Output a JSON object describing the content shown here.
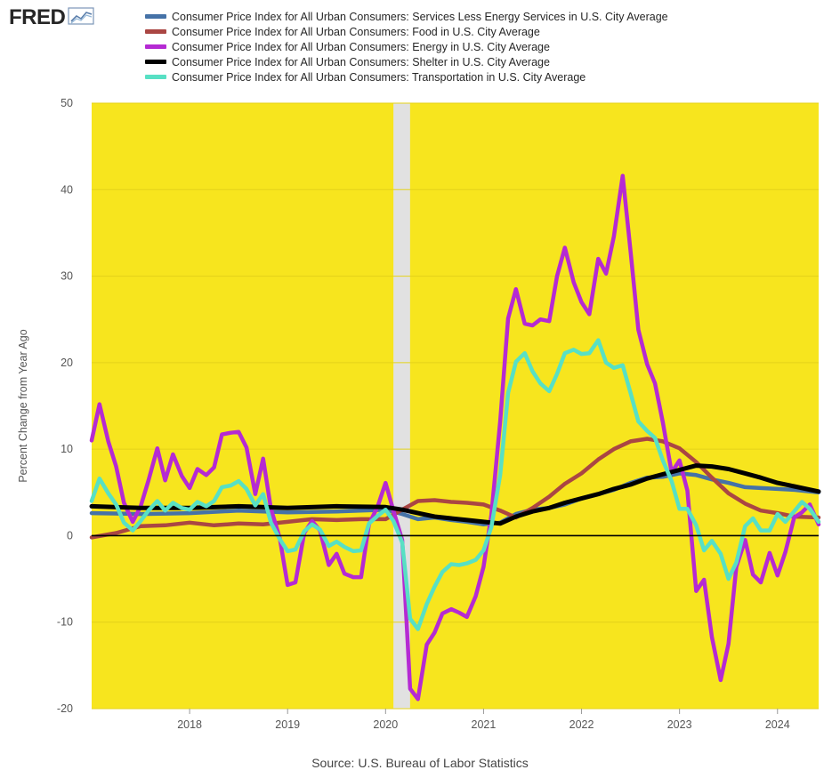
{
  "logo": {
    "text": "FRED",
    "icon": "trend-line-icon"
  },
  "source_label": "Source: U.S. Bureau of Labor Statistics",
  "colors": {
    "plot_background": "#f7e51e",
    "recession_shade": "#e1e1e1",
    "zero_line": "#000000"
  },
  "chart_data": {
    "type": "line",
    "ylabel": "Percent Change from Year Ago",
    "ylim": [
      -20,
      50
    ],
    "yticks": [
      -20,
      -10,
      0,
      10,
      20,
      30,
      40,
      50
    ],
    "xlim": [
      2017.0,
      2024.42
    ],
    "xticks": [
      2018,
      2019,
      2020,
      2021,
      2022,
      2023,
      2024
    ],
    "grid": "horizontal",
    "legend_position": "top",
    "recession_shading": [
      [
        2020.08,
        2020.25
      ]
    ],
    "series": [
      {
        "name": "Consumer Price Index for All Urban Consumers: Services Less Energy Services in U.S. City Average",
        "color": "#4572a7",
        "x": [
          2017.0,
          2017.5,
          2018.0,
          2018.5,
          2019.0,
          2019.5,
          2020.0,
          2020.17,
          2020.33,
          2020.5,
          2020.67,
          2020.83,
          2021.0,
          2021.17,
          2021.33,
          2021.5,
          2021.67,
          2021.83,
          2022.0,
          2022.17,
          2022.33,
          2022.5,
          2022.67,
          2022.83,
          2023.0,
          2023.17,
          2023.33,
          2023.5,
          2023.67,
          2023.83,
          2024.0,
          2024.17,
          2024.42
        ],
        "values": [
          2.6,
          2.5,
          2.6,
          2.9,
          2.7,
          2.8,
          3.0,
          2.5,
          1.9,
          2.1,
          1.8,
          1.6,
          1.3,
          1.5,
          2.5,
          3.0,
          3.2,
          3.6,
          4.3,
          4.8,
          5.3,
          6.1,
          6.7,
          6.8,
          7.2,
          7.0,
          6.5,
          6.1,
          5.6,
          5.5,
          5.4,
          5.3,
          5.0
        ]
      },
      {
        "name": "Consumer Price Index for All Urban Consumers: Food in U.S. City Average",
        "color": "#aa4643",
        "x": [
          2017.0,
          2017.25,
          2017.5,
          2017.75,
          2018.0,
          2018.25,
          2018.5,
          2018.75,
          2019.0,
          2019.25,
          2019.5,
          2019.75,
          2020.0,
          2020.17,
          2020.33,
          2020.5,
          2020.67,
          2020.83,
          2021.0,
          2021.17,
          2021.33,
          2021.5,
          2021.67,
          2021.83,
          2022.0,
          2022.17,
          2022.33,
          2022.5,
          2022.67,
          2022.83,
          2023.0,
          2023.17,
          2023.33,
          2023.5,
          2023.67,
          2023.83,
          2024.0,
          2024.17,
          2024.42
        ],
        "values": [
          -0.2,
          0.3,
          1.1,
          1.2,
          1.5,
          1.2,
          1.4,
          1.3,
          1.6,
          1.9,
          1.8,
          1.9,
          1.9,
          3.0,
          4.0,
          4.1,
          3.9,
          3.8,
          3.6,
          2.9,
          2.1,
          3.2,
          4.5,
          6.0,
          7.2,
          8.8,
          10.0,
          10.9,
          11.2,
          10.9,
          10.1,
          8.5,
          6.7,
          4.9,
          3.7,
          2.9,
          2.6,
          2.2,
          2.1
        ]
      },
      {
        "name": "Consumer Price Index for All Urban Consumers: Energy in U.S. City Average",
        "color": "#b52ad3",
        "x": [
          2017.0,
          2017.08,
          2017.17,
          2017.25,
          2017.33,
          2017.42,
          2017.5,
          2017.58,
          2017.67,
          2017.75,
          2017.83,
          2017.92,
          2018.0,
          2018.08,
          2018.17,
          2018.25,
          2018.33,
          2018.42,
          2018.5,
          2018.58,
          2018.67,
          2018.75,
          2018.83,
          2018.92,
          2019.0,
          2019.08,
          2019.17,
          2019.25,
          2019.33,
          2019.42,
          2019.5,
          2019.58,
          2019.67,
          2019.75,
          2019.83,
          2019.92,
          2020.0,
          2020.08,
          2020.17,
          2020.25,
          2020.33,
          2020.42,
          2020.5,
          2020.58,
          2020.67,
          2020.75,
          2020.83,
          2020.92,
          2021.0,
          2021.08,
          2021.17,
          2021.25,
          2021.33,
          2021.42,
          2021.5,
          2021.58,
          2021.67,
          2021.75,
          2021.83,
          2021.92,
          2022.0,
          2022.08,
          2022.17,
          2022.25,
          2022.33,
          2022.42,
          2022.5,
          2022.58,
          2022.67,
          2022.75,
          2022.83,
          2022.92,
          2023.0,
          2023.08,
          2023.17,
          2023.25,
          2023.33,
          2023.42,
          2023.5,
          2023.58,
          2023.67,
          2023.75,
          2023.83,
          2023.92,
          2024.0,
          2024.08,
          2024.17,
          2024.25,
          2024.33,
          2024.42
        ],
        "values": [
          11.0,
          15.2,
          10.9,
          8.0,
          3.8,
          1.6,
          3.4,
          6.4,
          10.1,
          6.4,
          9.4,
          6.9,
          5.5,
          7.7,
          7.0,
          7.9,
          11.7,
          11.9,
          12.0,
          10.2,
          4.8,
          8.9,
          3.1,
          -0.3,
          -5.7,
          -5.4,
          0.3,
          1.7,
          0.6,
          -3.4,
          -2.1,
          -4.4,
          -4.8,
          -4.8,
          1.3,
          3.4,
          6.1,
          2.9,
          -0.5,
          -17.7,
          -18.9,
          -12.6,
          -11.2,
          -9.0,
          -8.5,
          -8.9,
          -9.4,
          -7.0,
          -3.6,
          2.4,
          13.2,
          25.1,
          28.5,
          24.5,
          24.3,
          25.0,
          24.8,
          30.0,
          33.3,
          29.3,
          27.0,
          25.6,
          32.0,
          30.3,
          34.6,
          41.6,
          32.9,
          23.8,
          19.8,
          17.6,
          13.1,
          7.3,
          8.7,
          5.2,
          -6.4,
          -5.1,
          -11.7,
          -16.7,
          -12.5,
          -3.6,
          -0.5,
          -4.5,
          -5.4,
          -2.0,
          -4.6,
          -1.9,
          2.1,
          2.7,
          3.6,
          1.3
        ]
      },
      {
        "name": "Consumer Price Index for All Urban Consumers: Shelter in U.S. City Average",
        "color": "#000000",
        "x": [
          2017.0,
          2017.5,
          2018.0,
          2018.5,
          2019.0,
          2019.5,
          2020.0,
          2020.17,
          2020.33,
          2020.5,
          2020.67,
          2020.83,
          2021.0,
          2021.17,
          2021.33,
          2021.5,
          2021.67,
          2021.83,
          2022.0,
          2022.17,
          2022.33,
          2022.5,
          2022.67,
          2022.83,
          2023.0,
          2023.17,
          2023.33,
          2023.5,
          2023.67,
          2023.83,
          2024.0,
          2024.17,
          2024.42
        ],
        "values": [
          3.4,
          3.2,
          3.2,
          3.4,
          3.2,
          3.4,
          3.3,
          3.0,
          2.6,
          2.2,
          2.0,
          1.8,
          1.6,
          1.4,
          2.2,
          2.8,
          3.2,
          3.8,
          4.3,
          4.8,
          5.4,
          5.9,
          6.6,
          7.1,
          7.6,
          8.1,
          8.0,
          7.7,
          7.2,
          6.7,
          6.1,
          5.7,
          5.1
        ]
      },
      {
        "name": "Consumer Price Index for All Urban Consumers: Transportation in U.S. City Average",
        "color": "#58e0c4",
        "x": [
          2017.0,
          2017.08,
          2017.17,
          2017.25,
          2017.33,
          2017.42,
          2017.5,
          2017.58,
          2017.67,
          2017.75,
          2017.83,
          2017.92,
          2018.0,
          2018.08,
          2018.17,
          2018.25,
          2018.33,
          2018.42,
          2018.5,
          2018.58,
          2018.67,
          2018.75,
          2018.83,
          2018.92,
          2019.0,
          2019.08,
          2019.17,
          2019.25,
          2019.33,
          2019.42,
          2019.5,
          2019.58,
          2019.67,
          2019.75,
          2019.83,
          2019.92,
          2020.0,
          2020.08,
          2020.17,
          2020.25,
          2020.33,
          2020.42,
          2020.5,
          2020.58,
          2020.67,
          2020.75,
          2020.83,
          2020.92,
          2021.0,
          2021.08,
          2021.17,
          2021.25,
          2021.33,
          2021.42,
          2021.5,
          2021.58,
          2021.67,
          2021.75,
          2021.83,
          2021.92,
          2022.0,
          2022.08,
          2022.17,
          2022.25,
          2022.33,
          2022.42,
          2022.5,
          2022.58,
          2022.67,
          2022.75,
          2022.83,
          2022.92,
          2023.0,
          2023.08,
          2023.17,
          2023.25,
          2023.33,
          2023.42,
          2023.5,
          2023.58,
          2023.67,
          2023.75,
          2023.83,
          2023.92,
          2024.0,
          2024.08,
          2024.17,
          2024.25,
          2024.33,
          2024.42
        ],
        "values": [
          4.0,
          6.6,
          4.9,
          3.6,
          1.5,
          0.6,
          1.7,
          2.9,
          4.0,
          2.9,
          3.8,
          3.2,
          3.0,
          3.9,
          3.4,
          4.0,
          5.6,
          5.8,
          6.3,
          5.4,
          3.5,
          4.8,
          1.5,
          -0.4,
          -1.8,
          -1.6,
          0.5,
          1.3,
          0.7,
          -1.2,
          -0.7,
          -1.3,
          -1.8,
          -1.7,
          1.4,
          2.3,
          3.0,
          1.7,
          -0.8,
          -9.6,
          -10.8,
          -7.9,
          -5.9,
          -4.2,
          -3.3,
          -3.4,
          -3.2,
          -2.8,
          -1.7,
          1.0,
          7.0,
          16.5,
          20.1,
          21.1,
          19.0,
          17.6,
          16.7,
          18.7,
          21.1,
          21.5,
          21.0,
          21.1,
          22.6,
          20.0,
          19.4,
          19.7,
          16.5,
          13.2,
          12.1,
          11.3,
          8.7,
          6.3,
          3.1,
          3.1,
          1.2,
          -1.7,
          -0.6,
          -2.1,
          -5.0,
          -3.1,
          1.1,
          2.0,
          0.6,
          0.6,
          2.5,
          1.6,
          2.8,
          3.9,
          3.1,
          1.6
        ]
      }
    ]
  }
}
